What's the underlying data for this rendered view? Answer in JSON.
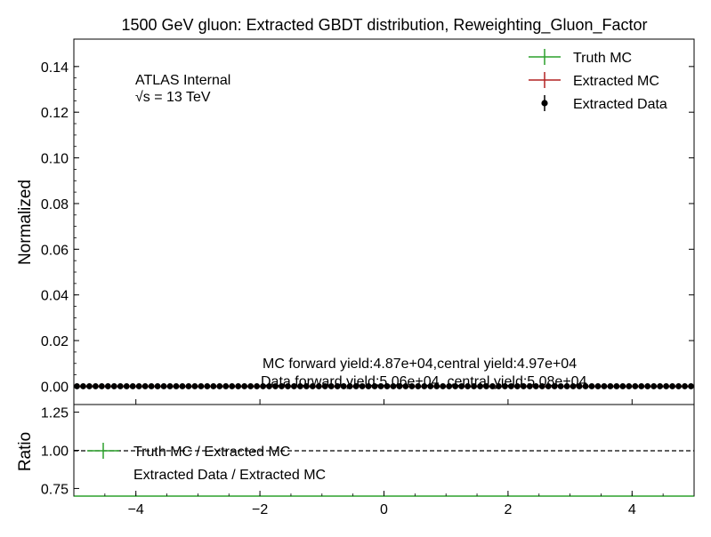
{
  "chart_data": [
    {
      "type": "histogram",
      "title": "1500 GeV gluon: Extracted GBDT distribution, Reweighting_Gluon_Factor",
      "xlabel": "",
      "ylabel": "Normalized",
      "xlim": [
        -5,
        5
      ],
      "ylim": [
        -0.008,
        0.152
      ],
      "yticks": [
        0.0,
        0.02,
        0.04,
        0.06,
        0.08,
        0.1,
        0.12,
        0.14
      ],
      "ytick_labels": [
        "0.00",
        "0.02",
        "0.04",
        "0.06",
        "0.08",
        "0.10",
        "0.12",
        "0.14"
      ],
      "xticks": [
        -4,
        -2,
        0,
        2,
        4
      ],
      "xtick_labels": [
        "−4",
        "−2",
        "0",
        "2",
        "4"
      ],
      "bin_edges": [
        -5.0,
        -4.9,
        -4.8,
        -4.7,
        -4.6,
        -4.5,
        -4.4,
        -4.3,
        -4.2,
        -4.1,
        -4.0,
        -3.9,
        -3.8,
        -3.7,
        -3.6,
        -3.5,
        -3.4,
        -3.3,
        -3.2,
        -3.1,
        -3.0,
        -2.9,
        -2.8,
        -2.7,
        -2.6,
        -2.5,
        -2.4,
        -2.3,
        -2.2,
        -2.1,
        -2.0,
        -1.9,
        -1.8,
        -1.7,
        -1.6,
        -1.5,
        -1.4,
        -1.3,
        -1.2,
        -1.1,
        -1.0,
        -0.9,
        -0.8,
        -0.7,
        -0.6,
        -0.5,
        -0.4,
        -0.3,
        -0.2,
        -0.1,
        0.0,
        0.1,
        0.2,
        0.3,
        0.4,
        0.5,
        0.6,
        0.7,
        0.8,
        0.9,
        1.0,
        1.1,
        1.2,
        1.3,
        1.4,
        1.5,
        1.6,
        1.7,
        1.8,
        1.9,
        2.0,
        2.1,
        2.2,
        2.3,
        2.4,
        2.5,
        2.6,
        2.7,
        2.8,
        2.9,
        3.0,
        3.1,
        3.2,
        3.3,
        3.4,
        3.5,
        3.6,
        3.7,
        3.8,
        3.9,
        4.0,
        4.1,
        4.2,
        4.3,
        4.4,
        4.5,
        4.6,
        4.7,
        4.8,
        4.9,
        5.0
      ],
      "series": [
        {
          "name": "Truth MC",
          "style": "step",
          "color": "#2ca02c",
          "values": [
            0.0,
            0.0,
            0.0,
            0.0,
            0.0,
            0.0,
            0.0,
            0.0,
            0.0,
            0.0,
            0.0,
            0.0,
            0.0,
            0.0,
            0.0,
            0.0,
            0.0,
            0.0,
            0.0,
            0.0,
            0.0,
            0.0,
            0.0,
            0.0,
            0.0,
            0.0,
            0.0,
            0.0,
            0.0,
            0.0,
            0.0,
            0.0,
            0.0,
            0.0,
            0.0,
            0.0,
            0.0,
            0.0,
            0.0,
            0.0,
            0.0,
            0.0,
            0.0,
            0.0,
            0.0,
            0.0,
            0.0,
            0.0,
            0.0,
            0.0,
            0.0,
            0.0,
            0.0,
            0.0,
            0.0,
            0.0,
            0.0,
            0.0,
            0.0,
            0.0,
            0.0,
            0.0,
            0.0,
            0.0,
            0.0,
            0.0,
            0.0,
            0.0,
            0.0,
            0.0,
            0.0,
            0.0,
            0.0,
            0.0,
            0.0,
            0.0,
            0.0,
            0.0,
            0.0,
            0.0,
            0.0,
            0.0,
            0.0,
            0.0,
            0.0,
            0.0,
            0.0,
            0.0,
            0.0,
            0.0,
            0.0,
            0.0,
            0.0,
            0.0,
            0.0,
            0.0,
            0.0,
            0.0,
            0.0,
            0.0
          ]
        },
        {
          "name": "Extracted MC",
          "style": "step",
          "color": "#b22222",
          "values": [
            0.0,
            0.0,
            0.0,
            0.0,
            0.0,
            0.0,
            0.0,
            0.0,
            0.0,
            0.0,
            0.0,
            0.0,
            0.0,
            0.0,
            0.0,
            0.0,
            0.0,
            0.0,
            0.0,
            0.0,
            0.0,
            0.0,
            0.0,
            0.0,
            0.0,
            0.0,
            0.0,
            0.0,
            0.0,
            0.0,
            0.0,
            0.0,
            0.0,
            0.0,
            0.0,
            0.0,
            0.0,
            0.0,
            0.0,
            0.0,
            0.0,
            0.0,
            0.0,
            0.0,
            0.0,
            0.0,
            0.0,
            0.0,
            0.0,
            0.0,
            0.0,
            0.0,
            0.0,
            0.0,
            0.0,
            0.0,
            0.0,
            0.0,
            0.0,
            0.0,
            0.0,
            0.0,
            0.0,
            0.0,
            0.0,
            0.0,
            0.0,
            0.0,
            0.0,
            0.0,
            0.0,
            0.0,
            0.0,
            0.0,
            0.0,
            0.0,
            0.0,
            0.0,
            0.0,
            0.0,
            0.0,
            0.0,
            0.0,
            0.0,
            0.0,
            0.0,
            0.0,
            0.0,
            0.0,
            0.0,
            0.0,
            0.0,
            0.0,
            0.0,
            0.0,
            0.0,
            0.0,
            0.0,
            0.0,
            0.0
          ]
        },
        {
          "name": "Extracted Data",
          "style": "errorbar",
          "color": "#000000",
          "values": [
            0.0,
            0.0,
            0.0,
            0.0,
            0.0,
            0.0,
            0.0,
            0.0,
            0.0,
            0.0,
            0.0,
            0.0,
            0.0,
            0.0,
            0.0,
            0.0,
            0.0,
            0.0,
            0.0,
            0.0,
            0.0,
            0.0,
            0.0,
            0.0,
            0.0,
            0.0,
            0.0,
            0.0,
            0.0,
            0.0,
            0.0,
            0.0,
            0.0,
            0.0,
            0.0,
            0.0,
            0.0,
            0.0,
            0.0,
            0.0,
            0.0,
            0.0,
            0.0,
            0.0,
            0.0,
            0.0,
            0.0,
            0.0,
            0.0,
            0.0,
            0.0,
            0.0,
            0.0,
            0.0,
            0.0,
            0.0,
            0.0,
            0.0,
            0.0,
            0.0,
            0.0,
            0.0,
            0.0,
            0.0,
            0.0,
            0.0,
            0.0,
            0.0,
            0.0,
            0.0,
            0.0,
            0.0,
            0.0,
            0.0,
            0.0,
            0.0,
            0.0,
            0.0,
            0.0,
            0.0,
            0.0,
            0.0,
            0.0,
            0.0,
            0.0,
            0.0,
            0.0,
            0.0,
            0.0,
            0.0,
            0.0,
            0.0,
            0.0,
            0.0,
            0.0,
            0.0,
            0.0,
            0.0,
            0.0,
            0.0
          ]
        }
      ],
      "legend_position": "top-right",
      "annotations": [
        "ATLAS Internal",
        "√s = 13 TeV",
        "MC forward yield:4.87e+04,central yield:4.97e+04",
        "Data forward yield:5.06e+04, central yield:5.08e+04"
      ],
      "grid": false
    },
    {
      "type": "ratio",
      "ylabel": "Ratio",
      "xlim": [
        -5,
        5
      ],
      "ylim": [
        0.7,
        1.3
      ],
      "yticks": [
        0.75,
        1.0,
        1.25
      ],
      "ytick_labels": [
        "0.75",
        "1.00",
        "1.25"
      ],
      "xticks": [
        -4,
        -2,
        0,
        2,
        4
      ],
      "xtick_labels": [
        "−4",
        "−2",
        "0",
        "2",
        "4"
      ],
      "reference_line": 1.0,
      "series": [
        {
          "name": "Truth MC / Extracted MC",
          "color": "#2ca02c",
          "values": [
            0.0,
            0.0,
            0.0,
            0.0,
            0.0,
            0.0,
            0.0,
            0.0,
            0.0,
            0.0,
            0.0,
            0.0,
            0.0,
            0.0,
            0.0,
            0.0,
            0.0,
            0.0,
            0.0,
            0.0,
            0.0,
            0.0,
            0.0,
            0.0,
            0.0,
            0.0,
            0.0,
            0.0,
            0.0,
            0.0,
            0.0,
            0.0,
            0.0,
            0.0,
            0.0,
            0.0,
            0.0,
            0.0,
            0.0,
            0.0,
            0.0,
            0.0,
            0.0,
            0.0,
            0.0,
            0.0,
            0.0,
            0.0,
            0.0,
            0.0,
            0.0,
            0.0,
            0.0,
            0.0,
            0.0,
            0.0,
            0.0,
            0.0,
            0.0,
            0.0,
            0.0,
            0.0,
            0.0,
            0.0,
            0.0,
            0.0,
            0.0,
            0.0,
            0.0,
            0.0,
            0.0,
            0.0,
            0.0,
            0.0,
            0.0,
            0.0,
            0.0,
            0.0,
            0.0,
            0.0,
            0.0,
            0.0,
            0.0,
            0.0,
            0.0,
            0.0,
            0.0,
            0.0,
            0.0,
            0.0,
            0.0,
            0.0,
            0.0,
            0.0,
            0.0,
            0.0,
            0.0,
            0.0,
            0.0,
            0.0
          ]
        },
        {
          "name": "Extracted Data / Extracted MC",
          "color": "#000000",
          "values": [
            0.0,
            0.0,
            0.0,
            0.0,
            0.0,
            0.0,
            0.0,
            0.0,
            0.0,
            0.0,
            0.0,
            0.0,
            0.0,
            0.0,
            0.0,
            0.0,
            0.0,
            0.0,
            0.0,
            0.0,
            0.0,
            0.0,
            0.0,
            0.0,
            0.0,
            0.0,
            0.0,
            0.0,
            0.0,
            0.0,
            0.0,
            0.0,
            0.0,
            0.0,
            0.0,
            0.0,
            0.0,
            0.0,
            0.0,
            0.0,
            0.0,
            0.0,
            0.0,
            0.0,
            0.0,
            0.0,
            0.0,
            0.0,
            0.0,
            0.0,
            0.0,
            0.0,
            0.0,
            0.0,
            0.0,
            0.0,
            0.0,
            0.0,
            0.0,
            0.0,
            0.0,
            0.0,
            0.0,
            0.0,
            0.0,
            0.0,
            0.0,
            0.0,
            0.0,
            0.0,
            0.0,
            0.0,
            0.0,
            0.0,
            0.0,
            0.0,
            0.0,
            0.0,
            0.0,
            0.0,
            0.0,
            0.0,
            0.0,
            0.0,
            0.0,
            0.0,
            0.0,
            0.0,
            0.0,
            0.0,
            0.0,
            0.0,
            0.0,
            0.0,
            0.0,
            0.0,
            0.0,
            0.0,
            0.0,
            0.0
          ]
        }
      ],
      "legend_position": "center-left"
    }
  ]
}
